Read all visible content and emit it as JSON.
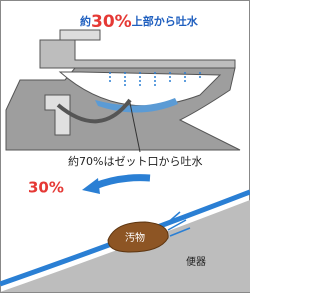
{
  "top_label": {
    "prefix": "約",
    "percent": "30%",
    "suffix": "上部から吐水"
  },
  "bottom_label": "約70%はゼット口から吐水",
  "detail": {
    "percent": "30%",
    "dirt": "汚物",
    "bowl": "便器"
  }
}
